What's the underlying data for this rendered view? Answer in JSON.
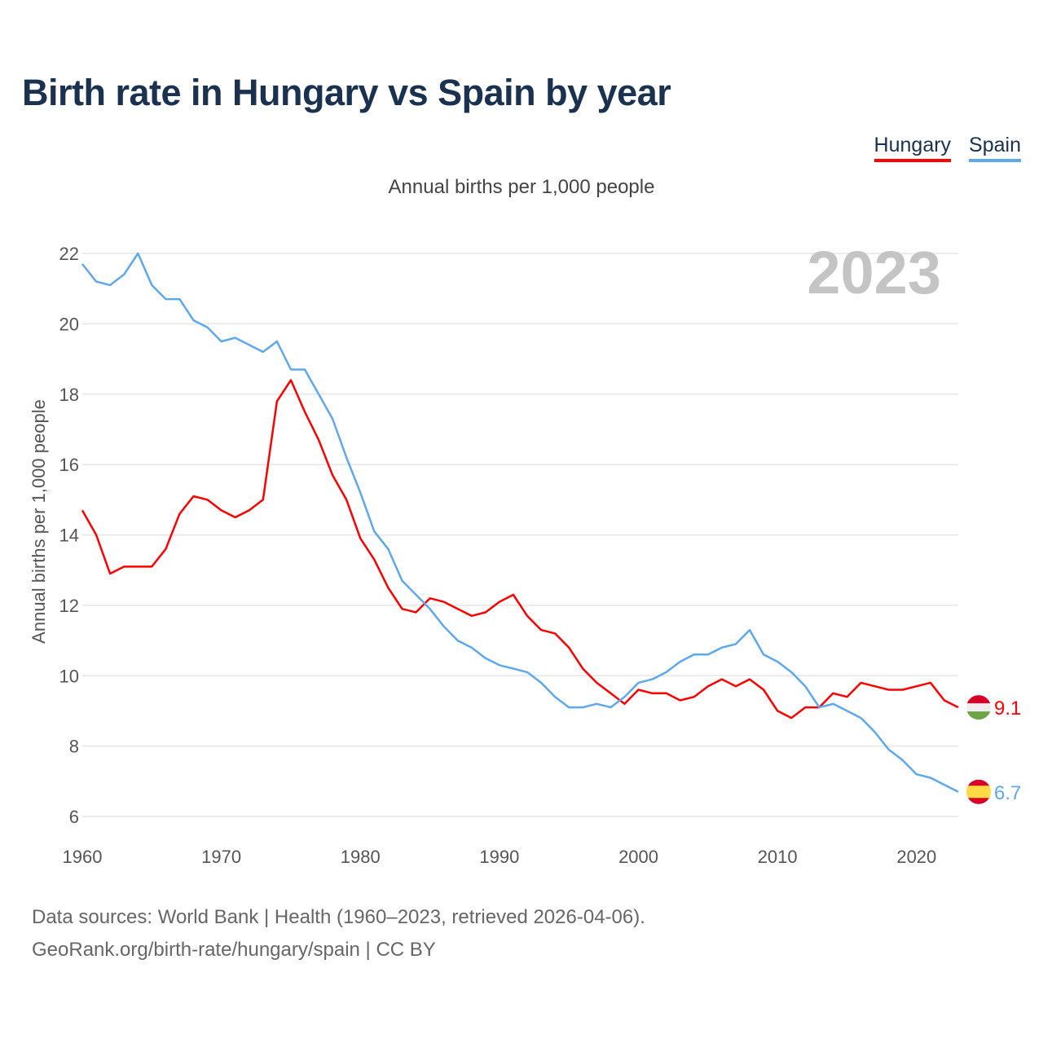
{
  "title": "Birth rate in Hungary vs Spain by year",
  "legend": [
    {
      "name": "Hungary",
      "color": "#ff0000"
    },
    {
      "name": "Spain",
      "color": "#5ea8ee"
    }
  ],
  "year_label": "2023",
  "footer": {
    "line1": "Data sources: World Bank | Health (1960–2023, retrieved 2026-04-06).",
    "line2": "GeoRank.org/birth-rate/hungary/spain | CC BY"
  },
  "chart_data": {
    "type": "line",
    "title": "Birth rate in Hungary vs Spain by year",
    "subtitle": "Annual births per 1,000 people",
    "xlabel": "",
    "ylabel": "Annual births per 1,000 people",
    "xlim": [
      1960,
      2023
    ],
    "ylim": [
      6,
      22.5
    ],
    "xticks": [
      1960,
      1970,
      1980,
      1990,
      2000,
      2010,
      2020
    ],
    "yticks": [
      6,
      8,
      10,
      12,
      14,
      16,
      18,
      20,
      22
    ],
    "grid": true,
    "legend_position": "top-right",
    "x_start": 1960,
    "series": [
      {
        "name": "Hungary",
        "color": "#ff0000",
        "end_label": "9.1",
        "flag": "hungary",
        "values": [
          14.7,
          14.0,
          12.9,
          13.1,
          13.1,
          13.1,
          13.6,
          14.6,
          15.1,
          15.0,
          14.7,
          14.5,
          14.7,
          15.0,
          17.8,
          18.4,
          17.5,
          16.7,
          15.7,
          15.0,
          13.9,
          13.3,
          12.5,
          11.9,
          11.8,
          12.2,
          12.1,
          11.9,
          11.7,
          11.8,
          12.1,
          12.3,
          11.7,
          11.3,
          11.2,
          10.8,
          10.2,
          9.8,
          9.5,
          9.2,
          9.6,
          9.5,
          9.5,
          9.3,
          9.4,
          9.7,
          9.9,
          9.7,
          9.9,
          9.6,
          9.0,
          8.8,
          9.1,
          9.1,
          9.5,
          9.4,
          9.8,
          9.7,
          9.6,
          9.6,
          9.7,
          9.8,
          9.3,
          9.1
        ]
      },
      {
        "name": "Spain",
        "color": "#5ea8ee",
        "end_label": "6.7",
        "flag": "spain",
        "values": [
          21.7,
          21.2,
          21.1,
          21.4,
          22.0,
          21.1,
          20.7,
          20.7,
          20.1,
          19.9,
          19.5,
          19.6,
          19.4,
          19.2,
          19.5,
          18.7,
          18.7,
          18.0,
          17.3,
          16.2,
          15.2,
          14.1,
          13.6,
          12.7,
          12.3,
          11.9,
          11.4,
          11.0,
          10.8,
          10.5,
          10.3,
          10.2,
          10.1,
          9.8,
          9.4,
          9.1,
          9.1,
          9.2,
          9.1,
          9.4,
          9.8,
          9.9,
          10.1,
          10.4,
          10.6,
          10.6,
          10.8,
          10.9,
          11.3,
          10.6,
          10.4,
          10.1,
          9.7,
          9.1,
          9.2,
          9.0,
          8.8,
          8.4,
          7.9,
          7.6,
          7.2,
          7.1,
          6.9,
          6.7
        ]
      }
    ]
  }
}
